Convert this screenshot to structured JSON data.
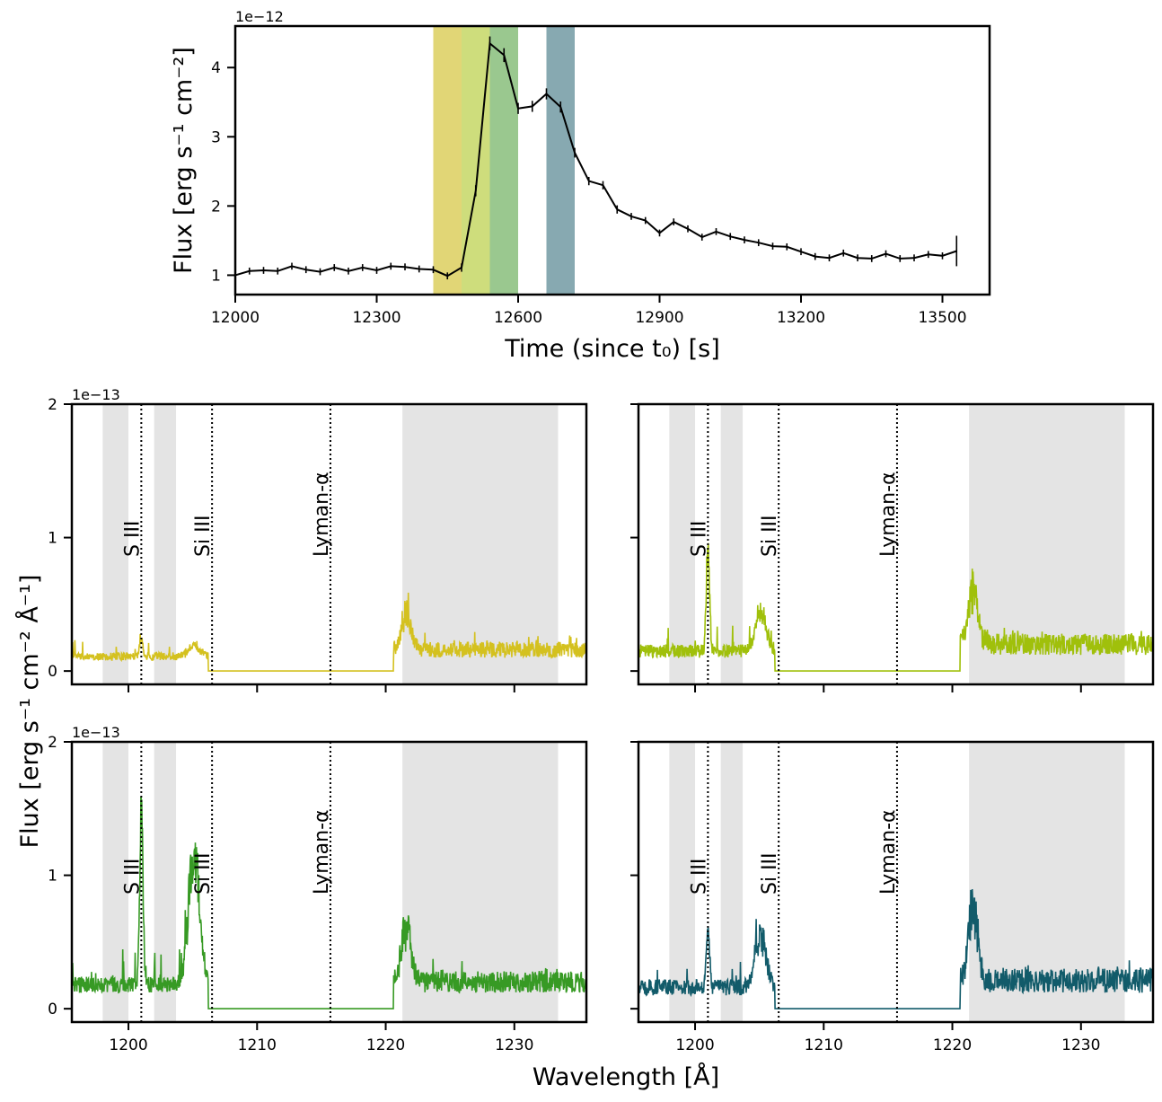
{
  "figure": {
    "shared_xlabel": "Wavelength [Å]",
    "shared_ylabel": "Flux [erg s⁻¹ cm⁻² Å⁻¹]"
  },
  "chart_data": [
    {
      "type": "line",
      "id": "lightcurve",
      "title": "",
      "xlabel": "Time (since t₀) [s]",
      "ylabel": "Flux [erg s⁻¹ cm⁻²]",
      "y_offset_text": "1e−12",
      "xlim": [
        12000,
        13600
      ],
      "ylim": [
        0.72,
        4.6
      ],
      "x_ticks": [
        12000,
        12300,
        12600,
        12900,
        13200,
        13500
      ],
      "y_ticks": [
        1,
        2,
        3,
        4
      ],
      "grid": false,
      "series": [
        {
          "color": "#000000",
          "x": [
            12000,
            12030,
            12060,
            12090,
            12120,
            12150,
            12180,
            12210,
            12240,
            12270,
            12300,
            12330,
            12360,
            12390,
            12420,
            12450,
            12480,
            12510,
            12540,
            12570,
            12600,
            12630,
            12660,
            12690,
            12720,
            12750,
            12780,
            12810,
            12840,
            12870,
            12900,
            12930,
            12960,
            12990,
            13020,
            13050,
            13080,
            13110,
            13140,
            13170,
            13200,
            13230,
            13260,
            13290,
            13320,
            13350,
            13380,
            13410,
            13440,
            13470,
            13500,
            13530
          ],
          "y": [
            1.0,
            1.06,
            1.07,
            1.06,
            1.13,
            1.08,
            1.05,
            1.11,
            1.06,
            1.11,
            1.07,
            1.13,
            1.12,
            1.09,
            1.08,
            0.99,
            1.11,
            2.22,
            4.35,
            4.18,
            3.41,
            3.44,
            3.62,
            3.43,
            2.77,
            2.36,
            2.3,
            1.95,
            1.85,
            1.79,
            1.61,
            1.77,
            1.67,
            1.55,
            1.63,
            1.56,
            1.51,
            1.47,
            1.42,
            1.41,
            1.34,
            1.27,
            1.25,
            1.32,
            1.25,
            1.24,
            1.31,
            1.24,
            1.25,
            1.3,
            1.28,
            1.35
          ],
          "yerr": [
            0.05,
            0.05,
            0.05,
            0.05,
            0.05,
            0.05,
            0.05,
            0.05,
            0.05,
            0.05,
            0.05,
            0.05,
            0.05,
            0.05,
            0.05,
            0.05,
            0.06,
            0.08,
            0.1,
            0.1,
            0.08,
            0.08,
            0.08,
            0.08,
            0.07,
            0.06,
            0.06,
            0.06,
            0.05,
            0.05,
            0.05,
            0.05,
            0.05,
            0.05,
            0.05,
            0.05,
            0.05,
            0.05,
            0.05,
            0.05,
            0.05,
            0.05,
            0.05,
            0.05,
            0.05,
            0.05,
            0.05,
            0.05,
            0.05,
            0.05,
            0.05,
            0.22
          ]
        }
      ],
      "shaded_intervals": [
        {
          "x": [
            12420,
            12480
          ],
          "color": "#e1d676"
        },
        {
          "x": [
            12480,
            12540
          ],
          "color": "#cedd7c"
        },
        {
          "x": [
            12540,
            12600
          ],
          "color": "#9ac88f"
        },
        {
          "x": [
            12660,
            12720
          ],
          "color": "#87a9b1"
        }
      ]
    },
    {
      "type": "line",
      "id": "spectrum-1",
      "xlim": [
        1195.6,
        1235.6
      ],
      "ylim": [
        -0.1,
        2.0
      ],
      "x_ticks": [
        1200,
        1210,
        1220,
        1230
      ],
      "y_ticks": [
        0,
        1,
        2
      ],
      "y_offset_text": "1e−13",
      "show_y_tick_labels": true,
      "show_x_tick_labels": false,
      "series": [
        {
          "color": "#d4c11f"
        }
      ],
      "profile": {
        "base": 0.08,
        "noise": 0.06,
        "s3_peak": 0.15,
        "si3_peak": 0.1,
        "right_base": 0.1,
        "right_noise": 0.12,
        "right_spike": 0.35
      },
      "masked_regions": [
        [
          1198.0,
          1200.0
        ],
        [
          1202.0,
          1203.7
        ],
        [
          1221.3,
          1233.4
        ]
      ],
      "line_markers": [
        {
          "x": 1201.0,
          "label": "S III"
        },
        {
          "x": 1206.5,
          "label": "Si III"
        },
        {
          "x": 1215.7,
          "label": "Lyman-α"
        }
      ]
    },
    {
      "type": "line",
      "id": "spectrum-2",
      "xlim": [
        1195.6,
        1235.6
      ],
      "ylim": [
        -0.1,
        2.0
      ],
      "x_ticks": [
        1200,
        1210,
        1220,
        1230
      ],
      "y_ticks": [
        0,
        1,
        2
      ],
      "show_y_tick_labels": false,
      "show_x_tick_labels": false,
      "series": [
        {
          "color": "#a0c00b"
        }
      ],
      "profile": {
        "base": 0.1,
        "noise": 0.1,
        "s3_peak": 0.9,
        "si3_peak": 0.35,
        "right_base": 0.12,
        "right_noise": 0.16,
        "right_spike": 0.55
      },
      "masked_regions": [
        [
          1198.0,
          1200.0
        ],
        [
          1202.0,
          1203.7
        ],
        [
          1221.3,
          1233.4
        ]
      ],
      "line_markers": [
        {
          "x": 1201.0,
          "label": "S III"
        },
        {
          "x": 1206.5,
          "label": "Si III"
        },
        {
          "x": 1215.7,
          "label": "Lyman-α"
        }
      ]
    },
    {
      "type": "line",
      "id": "spectrum-3",
      "xlim": [
        1195.6,
        1235.6
      ],
      "ylim": [
        -0.1,
        2.0
      ],
      "x_ticks": [
        1200,
        1210,
        1220,
        1230
      ],
      "y_ticks": [
        0,
        1,
        2
      ],
      "y_offset_text": "1e−13",
      "show_y_tick_labels": true,
      "show_x_tick_labels": true,
      "series": [
        {
          "color": "#379a24"
        }
      ],
      "profile": {
        "base": 0.12,
        "noise": 0.12,
        "s3_peak": 1.5,
        "si3_peak": 1.2,
        "right_base": 0.12,
        "right_noise": 0.16,
        "right_spike": 0.58
      },
      "masked_regions": [
        [
          1198.0,
          1200.0
        ],
        [
          1202.0,
          1203.7
        ],
        [
          1221.3,
          1233.4
        ]
      ],
      "line_markers": [
        {
          "x": 1201.0,
          "label": "S III"
        },
        {
          "x": 1206.5,
          "label": "Si III"
        },
        {
          "x": 1215.7,
          "label": "Lyman-α"
        }
      ]
    },
    {
      "type": "line",
      "id": "spectrum-4",
      "xlim": [
        1195.6,
        1235.6
      ],
      "ylim": [
        -0.1,
        2.0
      ],
      "x_ticks": [
        1200,
        1210,
        1220,
        1230
      ],
      "y_ticks": [
        0,
        1,
        2
      ],
      "show_y_tick_labels": false,
      "show_x_tick_labels": true,
      "series": [
        {
          "color": "#125b6a"
        }
      ],
      "profile": {
        "base": 0.1,
        "noise": 0.12,
        "s3_peak": 0.5,
        "si3_peak": 0.5,
        "right_base": 0.12,
        "right_noise": 0.18,
        "right_spike": 0.75
      },
      "masked_regions": [
        [
          1198.0,
          1200.0
        ],
        [
          1202.0,
          1203.7
        ],
        [
          1221.3,
          1233.4
        ]
      ],
      "line_markers": [
        {
          "x": 1201.0,
          "label": "S III"
        },
        {
          "x": 1206.5,
          "label": "Si III"
        },
        {
          "x": 1215.7,
          "label": "Lyman-α"
        }
      ]
    }
  ]
}
